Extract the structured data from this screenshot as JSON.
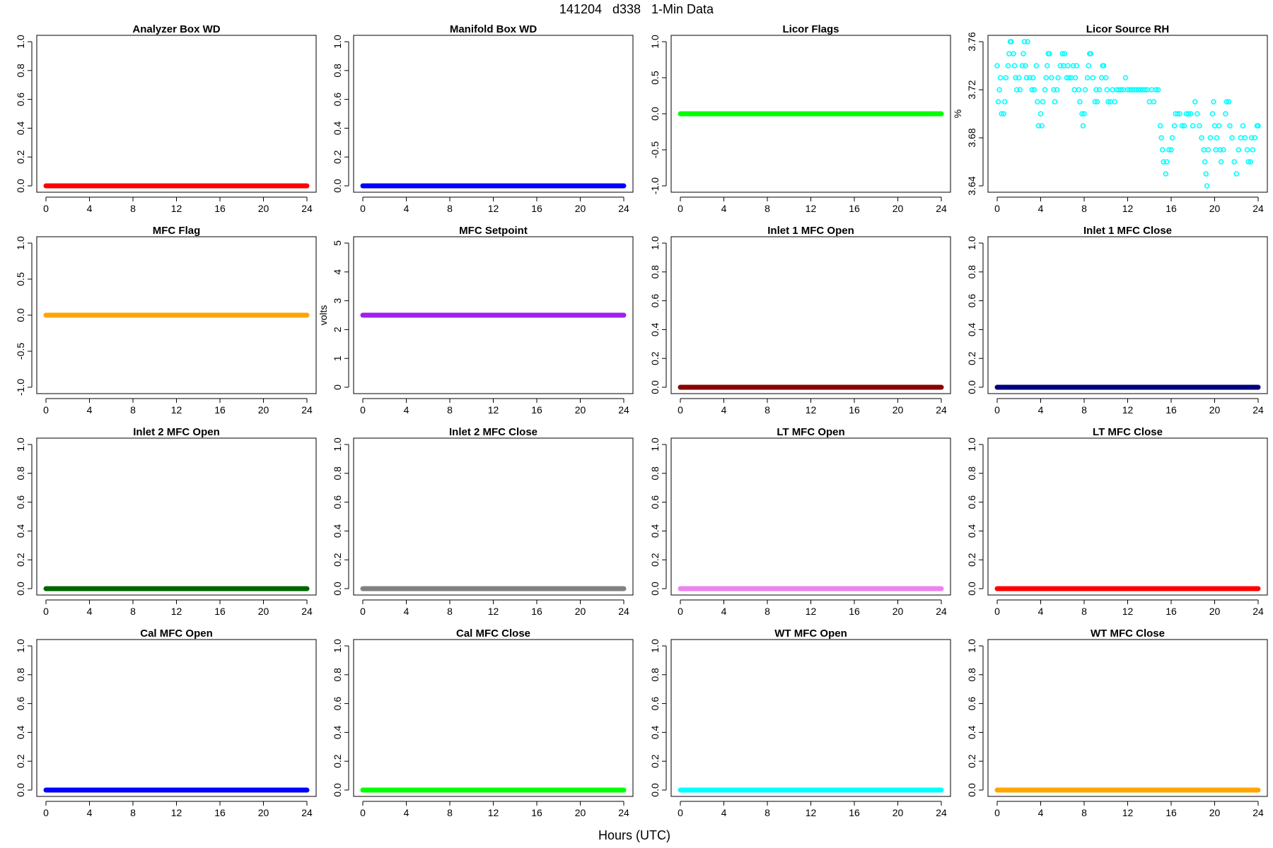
{
  "page": {
    "title": "141204   d338   1-Min Data",
    "xlabel": "Hours (UTC)"
  },
  "chart_data": [
    {
      "type": "scatter",
      "title": "Analyzer Box WD",
      "ylabel": "",
      "xlim": [
        0,
        24
      ],
      "xticks": [
        0,
        4,
        8,
        12,
        16,
        20,
        24
      ],
      "ylim": [
        0,
        1
      ],
      "yticks": [
        0.0,
        0.2,
        0.4,
        0.6,
        0.8,
        1.0
      ],
      "ytick_labels": [
        "0.0",
        "0.2",
        "0.4",
        "0.6",
        "0.8",
        "1.0"
      ],
      "color": "#ff0000",
      "constant": 0
    },
    {
      "type": "scatter",
      "title": "Manifold Box WD",
      "ylabel": "",
      "xlim": [
        0,
        24
      ],
      "xticks": [
        0,
        4,
        8,
        12,
        16,
        20,
        24
      ],
      "ylim": [
        0,
        1
      ],
      "yticks": [
        0.0,
        0.2,
        0.4,
        0.6,
        0.8,
        1.0
      ],
      "ytick_labels": [
        "0.0",
        "0.2",
        "0.4",
        "0.6",
        "0.8",
        "1.0"
      ],
      "color": "#0000ff",
      "constant": 0
    },
    {
      "type": "scatter",
      "title": "Licor Flags",
      "ylabel": "",
      "xlim": [
        0,
        24
      ],
      "xticks": [
        0,
        4,
        8,
        12,
        16,
        20,
        24
      ],
      "ylim": [
        -1,
        1
      ],
      "yticks": [
        -1.0,
        -0.5,
        0.0,
        0.5,
        1.0
      ],
      "ytick_labels": [
        "-1.0",
        "-0.5",
        "0.0",
        "0.5",
        "1.0"
      ],
      "color": "#00ff00",
      "constant": 0
    },
    {
      "type": "scatter",
      "title": "Licor Source RH",
      "ylabel": "%",
      "xlim": [
        0,
        24
      ],
      "xticks": [
        0,
        4,
        8,
        12,
        16,
        20,
        24
      ],
      "ylim": [
        3.64,
        3.76
      ],
      "yticks": [
        3.64,
        3.68,
        3.72,
        3.76
      ],
      "ytick_labels": [
        "3.64",
        "3.68",
        "3.72",
        "3.76"
      ],
      "color": "#00ffff",
      "marker": "open-circle",
      "points": [
        [
          0,
          3.74
        ],
        [
          0.1,
          3.71
        ],
        [
          0.2,
          3.72
        ],
        [
          0.3,
          3.73
        ],
        [
          0.4,
          3.7
        ],
        [
          0.6,
          3.7
        ],
        [
          0.7,
          3.71
        ],
        [
          0.8,
          3.73
        ],
        [
          1.0,
          3.74
        ],
        [
          1.1,
          3.75
        ],
        [
          1.2,
          3.76
        ],
        [
          1.3,
          3.76
        ],
        [
          1.5,
          3.75
        ],
        [
          1.6,
          3.74
        ],
        [
          1.7,
          3.73
        ],
        [
          1.8,
          3.72
        ],
        [
          2.0,
          3.73
        ],
        [
          2.1,
          3.72
        ],
        [
          2.3,
          3.74
        ],
        [
          2.4,
          3.75
        ],
        [
          2.5,
          3.76
        ],
        [
          2.6,
          3.74
        ],
        [
          2.7,
          3.73
        ],
        [
          2.8,
          3.76
        ],
        [
          3.0,
          3.73
        ],
        [
          3.2,
          3.72
        ],
        [
          3.3,
          3.73
        ],
        [
          3.4,
          3.72
        ],
        [
          3.6,
          3.74
        ],
        [
          3.7,
          3.71
        ],
        [
          3.8,
          3.69
        ],
        [
          4.0,
          3.7
        ],
        [
          4.1,
          3.69
        ],
        [
          4.2,
          3.71
        ],
        [
          4.4,
          3.72
        ],
        [
          4.5,
          3.73
        ],
        [
          4.6,
          3.74
        ],
        [
          4.7,
          3.75
        ],
        [
          4.8,
          3.75
        ],
        [
          5.0,
          3.73
        ],
        [
          5.2,
          3.72
        ],
        [
          5.3,
          3.71
        ],
        [
          5.5,
          3.72
        ],
        [
          5.6,
          3.73
        ],
        [
          5.8,
          3.74
        ],
        [
          6.0,
          3.75
        ],
        [
          6.1,
          3.74
        ],
        [
          6.2,
          3.75
        ],
        [
          6.4,
          3.73
        ],
        [
          6.5,
          3.74
        ],
        [
          6.6,
          3.73
        ],
        [
          6.8,
          3.73
        ],
        [
          7.0,
          3.74
        ],
        [
          7.1,
          3.72
        ],
        [
          7.2,
          3.73
        ],
        [
          7.3,
          3.74
        ],
        [
          7.5,
          3.72
        ],
        [
          7.6,
          3.71
        ],
        [
          7.8,
          3.7
        ],
        [
          7.9,
          3.69
        ],
        [
          8.0,
          3.7
        ],
        [
          8.1,
          3.72
        ],
        [
          8.3,
          3.73
        ],
        [
          8.4,
          3.74
        ],
        [
          8.5,
          3.75
        ],
        [
          8.6,
          3.75
        ],
        [
          8.8,
          3.73
        ],
        [
          9.0,
          3.71
        ],
        [
          9.1,
          3.72
        ],
        [
          9.2,
          3.71
        ],
        [
          9.4,
          3.72
        ],
        [
          9.6,
          3.73
        ],
        [
          9.7,
          3.74
        ],
        [
          9.8,
          3.74
        ],
        [
          10.0,
          3.73
        ],
        [
          10.1,
          3.72
        ],
        [
          10.2,
          3.71
        ],
        [
          10.4,
          3.71
        ],
        [
          10.6,
          3.72
        ],
        [
          10.8,
          3.71
        ],
        [
          11.0,
          3.72
        ],
        [
          11.2,
          3.72
        ],
        [
          11.4,
          3.72
        ],
        [
          11.6,
          3.72
        ],
        [
          11.8,
          3.73
        ],
        [
          12.0,
          3.72
        ],
        [
          12.2,
          3.72
        ],
        [
          12.4,
          3.72
        ],
        [
          12.6,
          3.72
        ],
        [
          12.8,
          3.72
        ],
        [
          13.0,
          3.72
        ],
        [
          13.2,
          3.72
        ],
        [
          13.4,
          3.72
        ],
        [
          13.6,
          3.72
        ],
        [
          13.8,
          3.72
        ],
        [
          14.0,
          3.71
        ],
        [
          14.2,
          3.72
        ],
        [
          14.4,
          3.71
        ],
        [
          14.6,
          3.72
        ],
        [
          14.8,
          3.72
        ],
        [
          15.0,
          3.69
        ],
        [
          15.1,
          3.68
        ],
        [
          15.2,
          3.67
        ],
        [
          15.3,
          3.66
        ],
        [
          15.5,
          3.65
        ],
        [
          15.6,
          3.66
        ],
        [
          15.8,
          3.67
        ],
        [
          16.0,
          3.67
        ],
        [
          16.1,
          3.68
        ],
        [
          16.3,
          3.69
        ],
        [
          16.4,
          3.7
        ],
        [
          16.6,
          3.7
        ],
        [
          16.8,
          3.7
        ],
        [
          17.0,
          3.69
        ],
        [
          17.2,
          3.69
        ],
        [
          17.4,
          3.7
        ],
        [
          17.6,
          3.7
        ],
        [
          17.8,
          3.7
        ],
        [
          18.0,
          3.69
        ],
        [
          18.2,
          3.71
        ],
        [
          18.4,
          3.7
        ],
        [
          18.6,
          3.69
        ],
        [
          18.8,
          3.68
        ],
        [
          19.0,
          3.67
        ],
        [
          19.1,
          3.66
        ],
        [
          19.2,
          3.65
        ],
        [
          19.3,
          3.64
        ],
        [
          19.4,
          3.67
        ],
        [
          19.6,
          3.68
        ],
        [
          19.8,
          3.7
        ],
        [
          19.9,
          3.71
        ],
        [
          20.0,
          3.69
        ],
        [
          20.1,
          3.67
        ],
        [
          20.2,
          3.68
        ],
        [
          20.4,
          3.69
        ],
        [
          20.5,
          3.67
        ],
        [
          20.6,
          3.66
        ],
        [
          20.8,
          3.67
        ],
        [
          21.0,
          3.7
        ],
        [
          21.1,
          3.71
        ],
        [
          21.3,
          3.71
        ],
        [
          21.4,
          3.69
        ],
        [
          21.6,
          3.68
        ],
        [
          21.8,
          3.66
        ],
        [
          22.0,
          3.65
        ],
        [
          22.2,
          3.67
        ],
        [
          22.4,
          3.68
        ],
        [
          22.6,
          3.69
        ],
        [
          22.8,
          3.68
        ],
        [
          23.0,
          3.67
        ],
        [
          23.1,
          3.66
        ],
        [
          23.3,
          3.66
        ],
        [
          23.4,
          3.68
        ],
        [
          23.5,
          3.67
        ],
        [
          23.7,
          3.68
        ],
        [
          23.9,
          3.69
        ],
        [
          24.0,
          3.69
        ]
      ]
    },
    {
      "type": "scatter",
      "title": "MFC Flag",
      "ylabel": "",
      "xlim": [
        0,
        24
      ],
      "xticks": [
        0,
        4,
        8,
        12,
        16,
        20,
        24
      ],
      "ylim": [
        -1,
        1
      ],
      "yticks": [
        -1.0,
        -0.5,
        0.0,
        0.5,
        1.0
      ],
      "ytick_labels": [
        "-1.0",
        "-0.5",
        "0.0",
        "0.5",
        "1.0"
      ],
      "color": "#ffa500",
      "constant": 0
    },
    {
      "type": "scatter",
      "title": "MFC Setpoint",
      "ylabel": "volts",
      "xlim": [
        0,
        24
      ],
      "xticks": [
        0,
        4,
        8,
        12,
        16,
        20,
        24
      ],
      "ylim": [
        0,
        5
      ],
      "yticks": [
        0,
        1,
        2,
        3,
        4,
        5
      ],
      "ytick_labels": [
        "0",
        "1",
        "2",
        "3",
        "4",
        "5"
      ],
      "color": "#a020f0",
      "constant": 2.5
    },
    {
      "type": "scatter",
      "title": "Inlet 1 MFC Open",
      "ylabel": "",
      "xlim": [
        0,
        24
      ],
      "xticks": [
        0,
        4,
        8,
        12,
        16,
        20,
        24
      ],
      "ylim": [
        0,
        1
      ],
      "yticks": [
        0.0,
        0.2,
        0.4,
        0.6,
        0.8,
        1.0
      ],
      "ytick_labels": [
        "0.0",
        "0.2",
        "0.4",
        "0.6",
        "0.8",
        "1.0"
      ],
      "color": "#8b0000",
      "constant": 0
    },
    {
      "type": "scatter",
      "title": "Inlet 1 MFC Close",
      "ylabel": "",
      "xlim": [
        0,
        24
      ],
      "xticks": [
        0,
        4,
        8,
        12,
        16,
        20,
        24
      ],
      "ylim": [
        0,
        1
      ],
      "yticks": [
        0.0,
        0.2,
        0.4,
        0.6,
        0.8,
        1.0
      ],
      "ytick_labels": [
        "0.0",
        "0.2",
        "0.4",
        "0.6",
        "0.8",
        "1.0"
      ],
      "color": "#000080",
      "constant": 0
    },
    {
      "type": "scatter",
      "title": "Inlet 2 MFC Open",
      "ylabel": "",
      "xlim": [
        0,
        24
      ],
      "xticks": [
        0,
        4,
        8,
        12,
        16,
        20,
        24
      ],
      "ylim": [
        0,
        1
      ],
      "yticks": [
        0.0,
        0.2,
        0.4,
        0.6,
        0.8,
        1.0
      ],
      "ytick_labels": [
        "0.0",
        "0.2",
        "0.4",
        "0.6",
        "0.8",
        "1.0"
      ],
      "color": "#006400",
      "constant": 0
    },
    {
      "type": "scatter",
      "title": "Inlet 2 MFC Close",
      "ylabel": "",
      "xlim": [
        0,
        24
      ],
      "xticks": [
        0,
        4,
        8,
        12,
        16,
        20,
        24
      ],
      "ylim": [
        0,
        1
      ],
      "yticks": [
        0.0,
        0.2,
        0.4,
        0.6,
        0.8,
        1.0
      ],
      "ytick_labels": [
        "0.0",
        "0.2",
        "0.4",
        "0.6",
        "0.8",
        "1.0"
      ],
      "color": "#808080",
      "constant": 0
    },
    {
      "type": "scatter",
      "title": "LT MFC Open",
      "ylabel": "",
      "xlim": [
        0,
        24
      ],
      "xticks": [
        0,
        4,
        8,
        12,
        16,
        20,
        24
      ],
      "ylim": [
        0,
        1
      ],
      "yticks": [
        0.0,
        0.2,
        0.4,
        0.6,
        0.8,
        1.0
      ],
      "ytick_labels": [
        "0.0",
        "0.2",
        "0.4",
        "0.6",
        "0.8",
        "1.0"
      ],
      "color": "#ee82ee",
      "constant": 0
    },
    {
      "type": "scatter",
      "title": "LT MFC Close",
      "ylabel": "",
      "xlim": [
        0,
        24
      ],
      "xticks": [
        0,
        4,
        8,
        12,
        16,
        20,
        24
      ],
      "ylim": [
        0,
        1
      ],
      "yticks": [
        0.0,
        0.2,
        0.4,
        0.6,
        0.8,
        1.0
      ],
      "ytick_labels": [
        "0.0",
        "0.2",
        "0.4",
        "0.6",
        "0.8",
        "1.0"
      ],
      "color": "#ff0000",
      "constant": 0
    },
    {
      "type": "scatter",
      "title": "Cal MFC Open",
      "ylabel": "",
      "xlim": [
        0,
        24
      ],
      "xticks": [
        0,
        4,
        8,
        12,
        16,
        20,
        24
      ],
      "ylim": [
        0,
        1
      ],
      "yticks": [
        0.0,
        0.2,
        0.4,
        0.6,
        0.8,
        1.0
      ],
      "ytick_labels": [
        "0.0",
        "0.2",
        "0.4",
        "0.6",
        "0.8",
        "1.0"
      ],
      "color": "#0000ff",
      "constant": 0
    },
    {
      "type": "scatter",
      "title": "Cal MFC Close",
      "ylabel": "",
      "xlim": [
        0,
        24
      ],
      "xticks": [
        0,
        4,
        8,
        12,
        16,
        20,
        24
      ],
      "ylim": [
        0,
        1
      ],
      "yticks": [
        0.0,
        0.2,
        0.4,
        0.6,
        0.8,
        1.0
      ],
      "ytick_labels": [
        "0.0",
        "0.2",
        "0.4",
        "0.6",
        "0.8",
        "1.0"
      ],
      "color": "#00ff00",
      "constant": 0
    },
    {
      "type": "scatter",
      "title": "WT MFC Open",
      "ylabel": "",
      "xlim": [
        0,
        24
      ],
      "xticks": [
        0,
        4,
        8,
        12,
        16,
        20,
        24
      ],
      "ylim": [
        0,
        1
      ],
      "yticks": [
        0.0,
        0.2,
        0.4,
        0.6,
        0.8,
        1.0
      ],
      "ytick_labels": [
        "0.0",
        "0.2",
        "0.4",
        "0.6",
        "0.8",
        "1.0"
      ],
      "color": "#00ffff",
      "constant": 0
    },
    {
      "type": "scatter",
      "title": "WT MFC Close",
      "ylabel": "",
      "xlim": [
        0,
        24
      ],
      "xticks": [
        0,
        4,
        8,
        12,
        16,
        20,
        24
      ],
      "ylim": [
        0,
        1
      ],
      "yticks": [
        0.0,
        0.2,
        0.4,
        0.6,
        0.8,
        1.0
      ],
      "ytick_labels": [
        "0.0",
        "0.2",
        "0.4",
        "0.6",
        "0.8",
        "1.0"
      ],
      "color": "#ffa500",
      "constant": 0
    }
  ]
}
